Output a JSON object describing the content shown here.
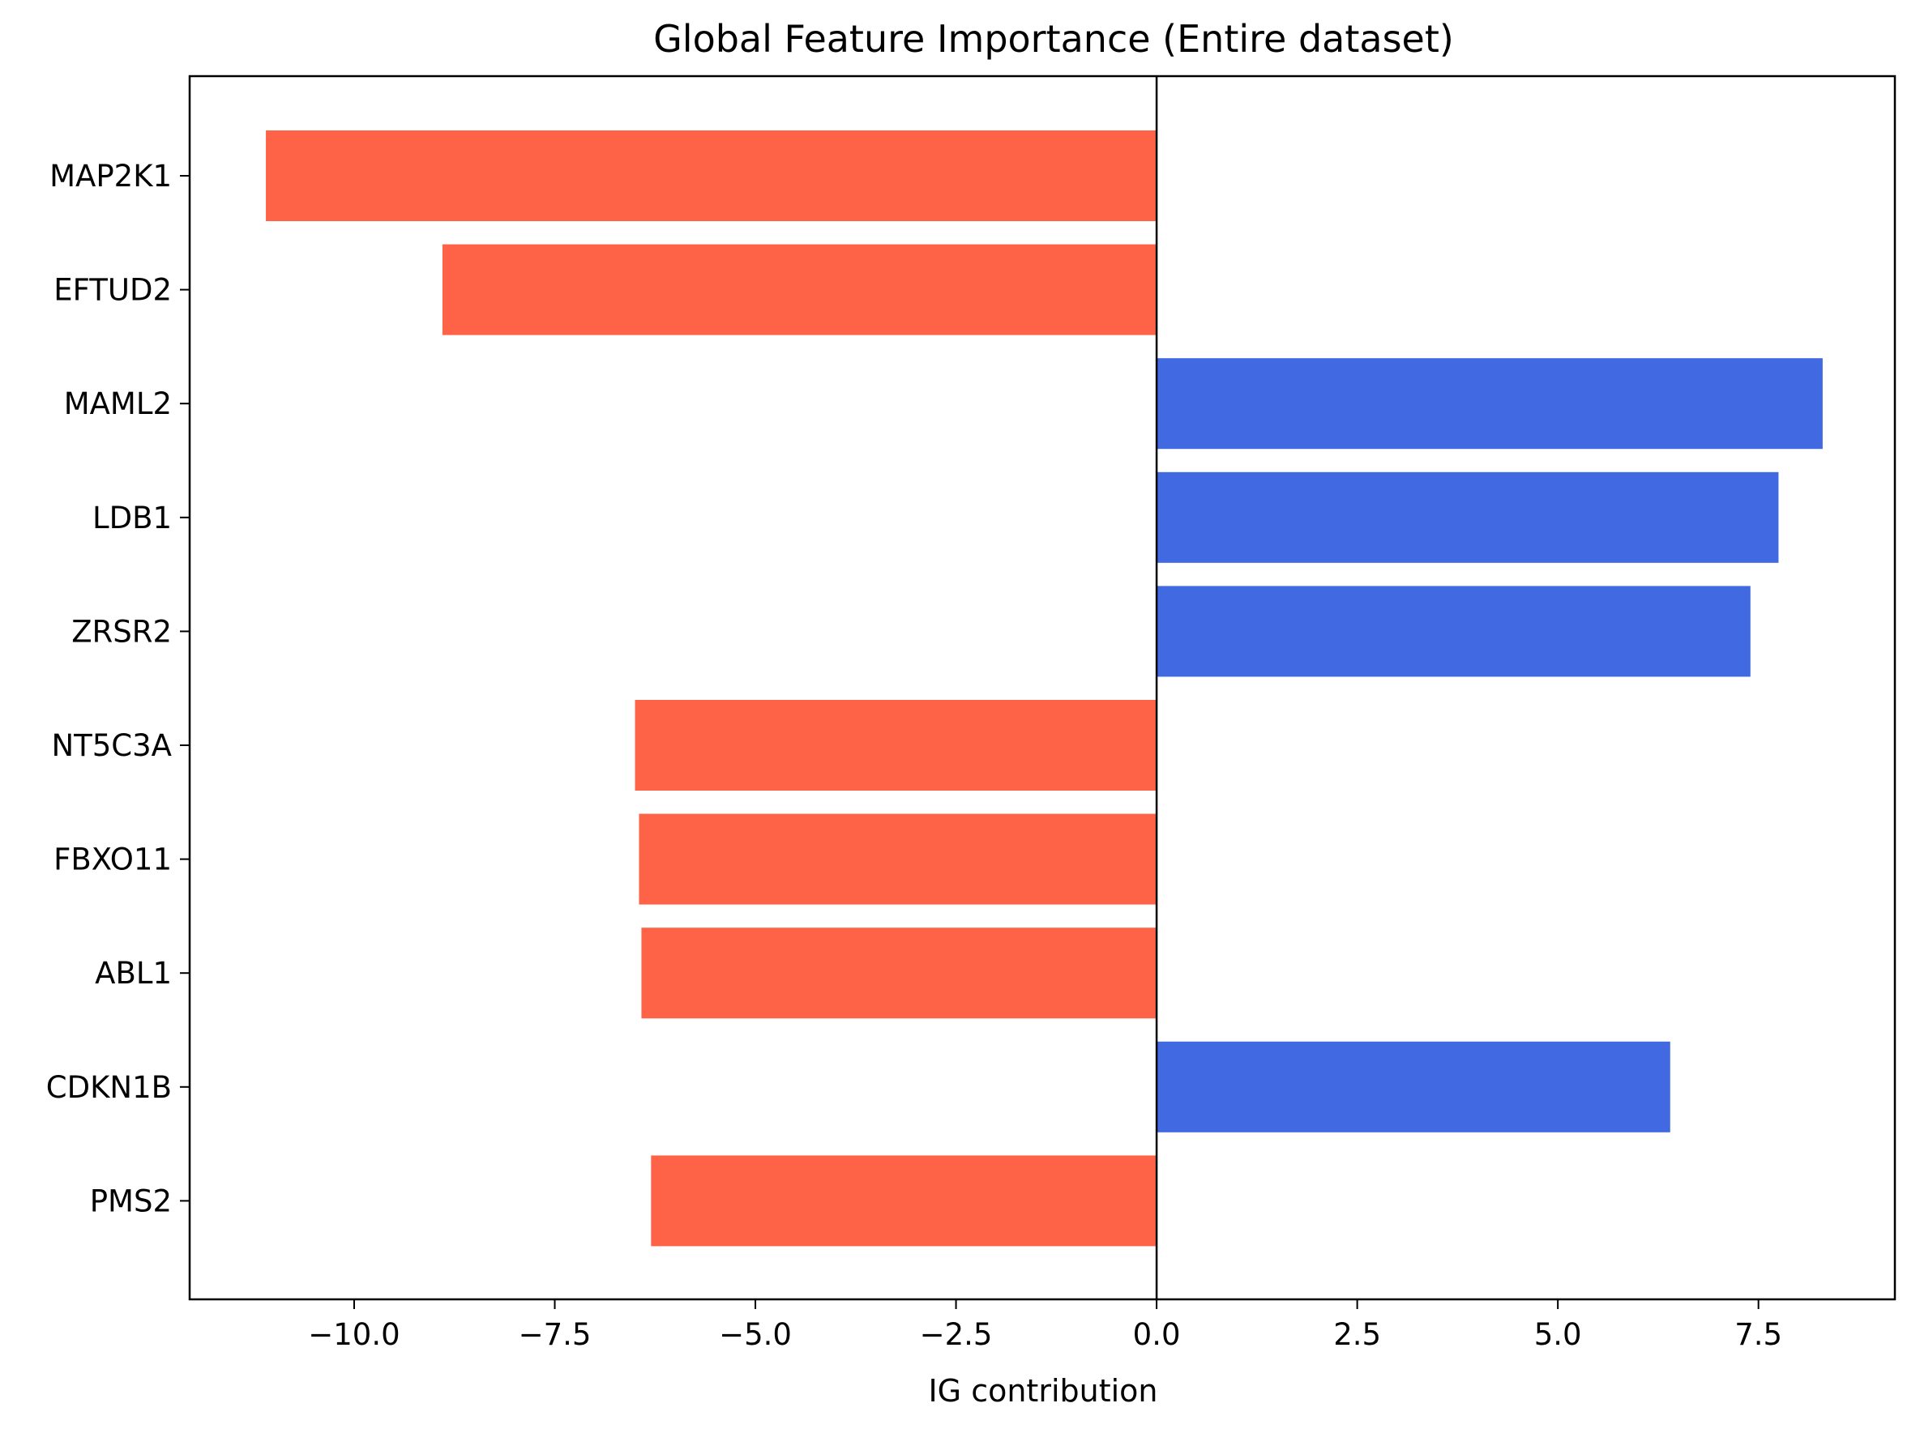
{
  "chart_data": {
    "type": "bar",
    "orientation": "horizontal",
    "title": "Global Feature Importance (Entire dataset)",
    "xlabel": "IG contribution",
    "ylabel": "",
    "categories": [
      "MAP2K1",
      "EFTUD2",
      "MAML2",
      "LDB1",
      "ZRSR2",
      "NT5C3A",
      "FBXO11",
      "ABL1",
      "CDKN1B",
      "PMS2"
    ],
    "values": [
      -11.1,
      -8.9,
      8.3,
      7.75,
      7.4,
      -6.5,
      -6.45,
      -6.42,
      6.4,
      -6.3
    ],
    "xlim": [
      -12.05,
      9.2
    ],
    "xticks": [
      -10.0,
      -7.5,
      -5.0,
      -2.5,
      0.0,
      2.5,
      5.0,
      7.5
    ],
    "xtick_labels": [
      "−10.0",
      "−7.5",
      "−5.0",
      "−2.5",
      "0.0",
      "2.5",
      "5.0",
      "7.5"
    ],
    "zero_line": true,
    "grid": false,
    "legend": "none",
    "colors": {
      "positive": "#4169E1",
      "negative": "#FF6347",
      "axis": "#000000"
    }
  }
}
